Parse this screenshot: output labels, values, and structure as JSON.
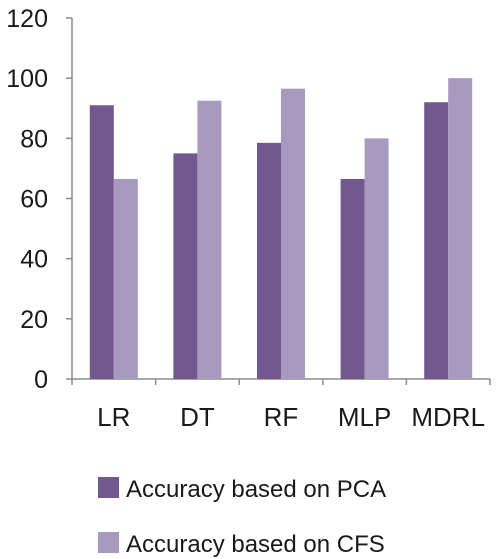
{
  "chart_data": {
    "type": "bar",
    "categories": [
      "LR",
      "DT",
      "RF",
      "MLP",
      "MDRL"
    ],
    "series": [
      {
        "name": "Accuracy based on PCA",
        "values": [
          91,
          75,
          78.5,
          66.5,
          92
        ],
        "color": "#71598f"
      },
      {
        "name": "Accuracy based on CFS",
        "values": [
          66.5,
          92.5,
          96.5,
          80,
          100
        ],
        "color": "#a899be"
      }
    ],
    "y_ticks": [
      "0",
      "20",
      "40",
      "60",
      "80",
      "100",
      "120"
    ],
    "ylim": [
      0,
      120
    ],
    "title": "",
    "xlabel": "",
    "ylabel": "",
    "grid": false,
    "legend_position": "bottom",
    "axis_color": "#8c8c8c"
  }
}
